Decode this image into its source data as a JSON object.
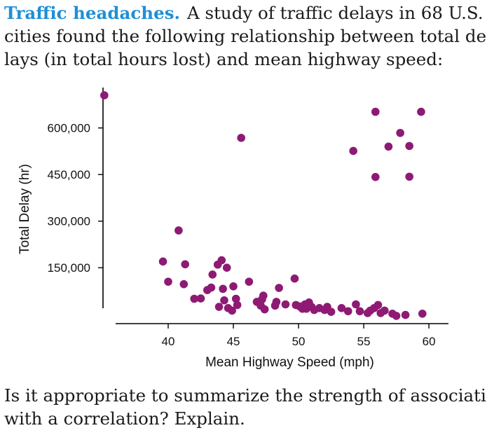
{
  "problem": {
    "title": "Traffic headaches.",
    "intro_lines": [
      "A study of traffic delays in 68 U.S.",
      "cities found the following relationship between total de-",
      "lays (in total hours lost) and mean highway speed:"
    ],
    "question_lines": [
      "Is it appropriate to summarize the strength of association",
      "with a correlation? Explain."
    ]
  },
  "colors": {
    "title": "#1e8fd6",
    "points": "#8e1a74",
    "axis": "#000000"
  },
  "chart_data": {
    "type": "scatter",
    "xlabel": "Mean Highway Speed (mph)",
    "ylabel": "Total Delay (hr)",
    "xlim": [
      35,
      61.5
    ],
    "ylim": [
      -30000,
      730000
    ],
    "x_ticks": [
      40,
      45,
      50,
      55,
      60
    ],
    "x_tick_labels": [
      "40",
      "45",
      "50",
      "55",
      "60"
    ],
    "y_ticks": [
      150000,
      300000,
      450000,
      600000
    ],
    "y_tick_labels": [
      "150,000",
      "300,000",
      "450,000",
      "600,000"
    ],
    "grid": false,
    "points": [
      [
        35.1,
        705000
      ],
      [
        45.6,
        568000
      ],
      [
        54.2,
        526000
      ],
      [
        55.9,
        652000
      ],
      [
        56.9,
        540000
      ],
      [
        57.8,
        584000
      ],
      [
        58.5,
        542000
      ],
      [
        59.4,
        652000
      ],
      [
        55.9,
        442000
      ],
      [
        58.5,
        443000
      ],
      [
        40.8,
        270000
      ],
      [
        39.6,
        170000
      ],
      [
        41.3,
        161000
      ],
      [
        40.0,
        105000
      ],
      [
        41.2,
        97000
      ],
      [
        42.0,
        50000
      ],
      [
        42.5,
        51000
      ],
      [
        43.0,
        78000
      ],
      [
        43.3,
        86000
      ],
      [
        43.4,
        128000
      ],
      [
        43.8,
        160000
      ],
      [
        44.1,
        174000
      ],
      [
        44.5,
        150000
      ],
      [
        43.9,
        24000
      ],
      [
        44.2,
        82000
      ],
      [
        44.3,
        45000
      ],
      [
        44.6,
        20000
      ],
      [
        44.9,
        12000
      ],
      [
        45.0,
        90000
      ],
      [
        45.2,
        50000
      ],
      [
        45.3,
        30000
      ],
      [
        46.2,
        105000
      ],
      [
        46.8,
        40000
      ],
      [
        47.2,
        48000
      ],
      [
        47.3,
        60000
      ],
      [
        47.1,
        28000
      ],
      [
        47.4,
        16000
      ],
      [
        48.2,
        28000
      ],
      [
        48.3,
        40000
      ],
      [
        48.5,
        85000
      ],
      [
        49.0,
        32000
      ],
      [
        49.7,
        115000
      ],
      [
        49.8,
        30000
      ],
      [
        50.1,
        25000
      ],
      [
        50.3,
        18000
      ],
      [
        50.5,
        32000
      ],
      [
        50.6,
        18000
      ],
      [
        50.8,
        38000
      ],
      [
        51.0,
        24000
      ],
      [
        51.2,
        14000
      ],
      [
        51.6,
        20000
      ],
      [
        52.0,
        14000
      ],
      [
        52.2,
        24000
      ],
      [
        52.5,
        8000
      ],
      [
        53.3,
        20000
      ],
      [
        53.8,
        10000
      ],
      [
        54.4,
        32000
      ],
      [
        54.7,
        10000
      ],
      [
        55.3,
        4000
      ],
      [
        55.5,
        12000
      ],
      [
        55.8,
        20000
      ],
      [
        56.1,
        30000
      ],
      [
        56.3,
        4000
      ],
      [
        56.6,
        12000
      ],
      [
        57.2,
        2000
      ],
      [
        57.5,
        -5000
      ],
      [
        58.2,
        -2000
      ],
      [
        59.5,
        2000
      ]
    ]
  }
}
